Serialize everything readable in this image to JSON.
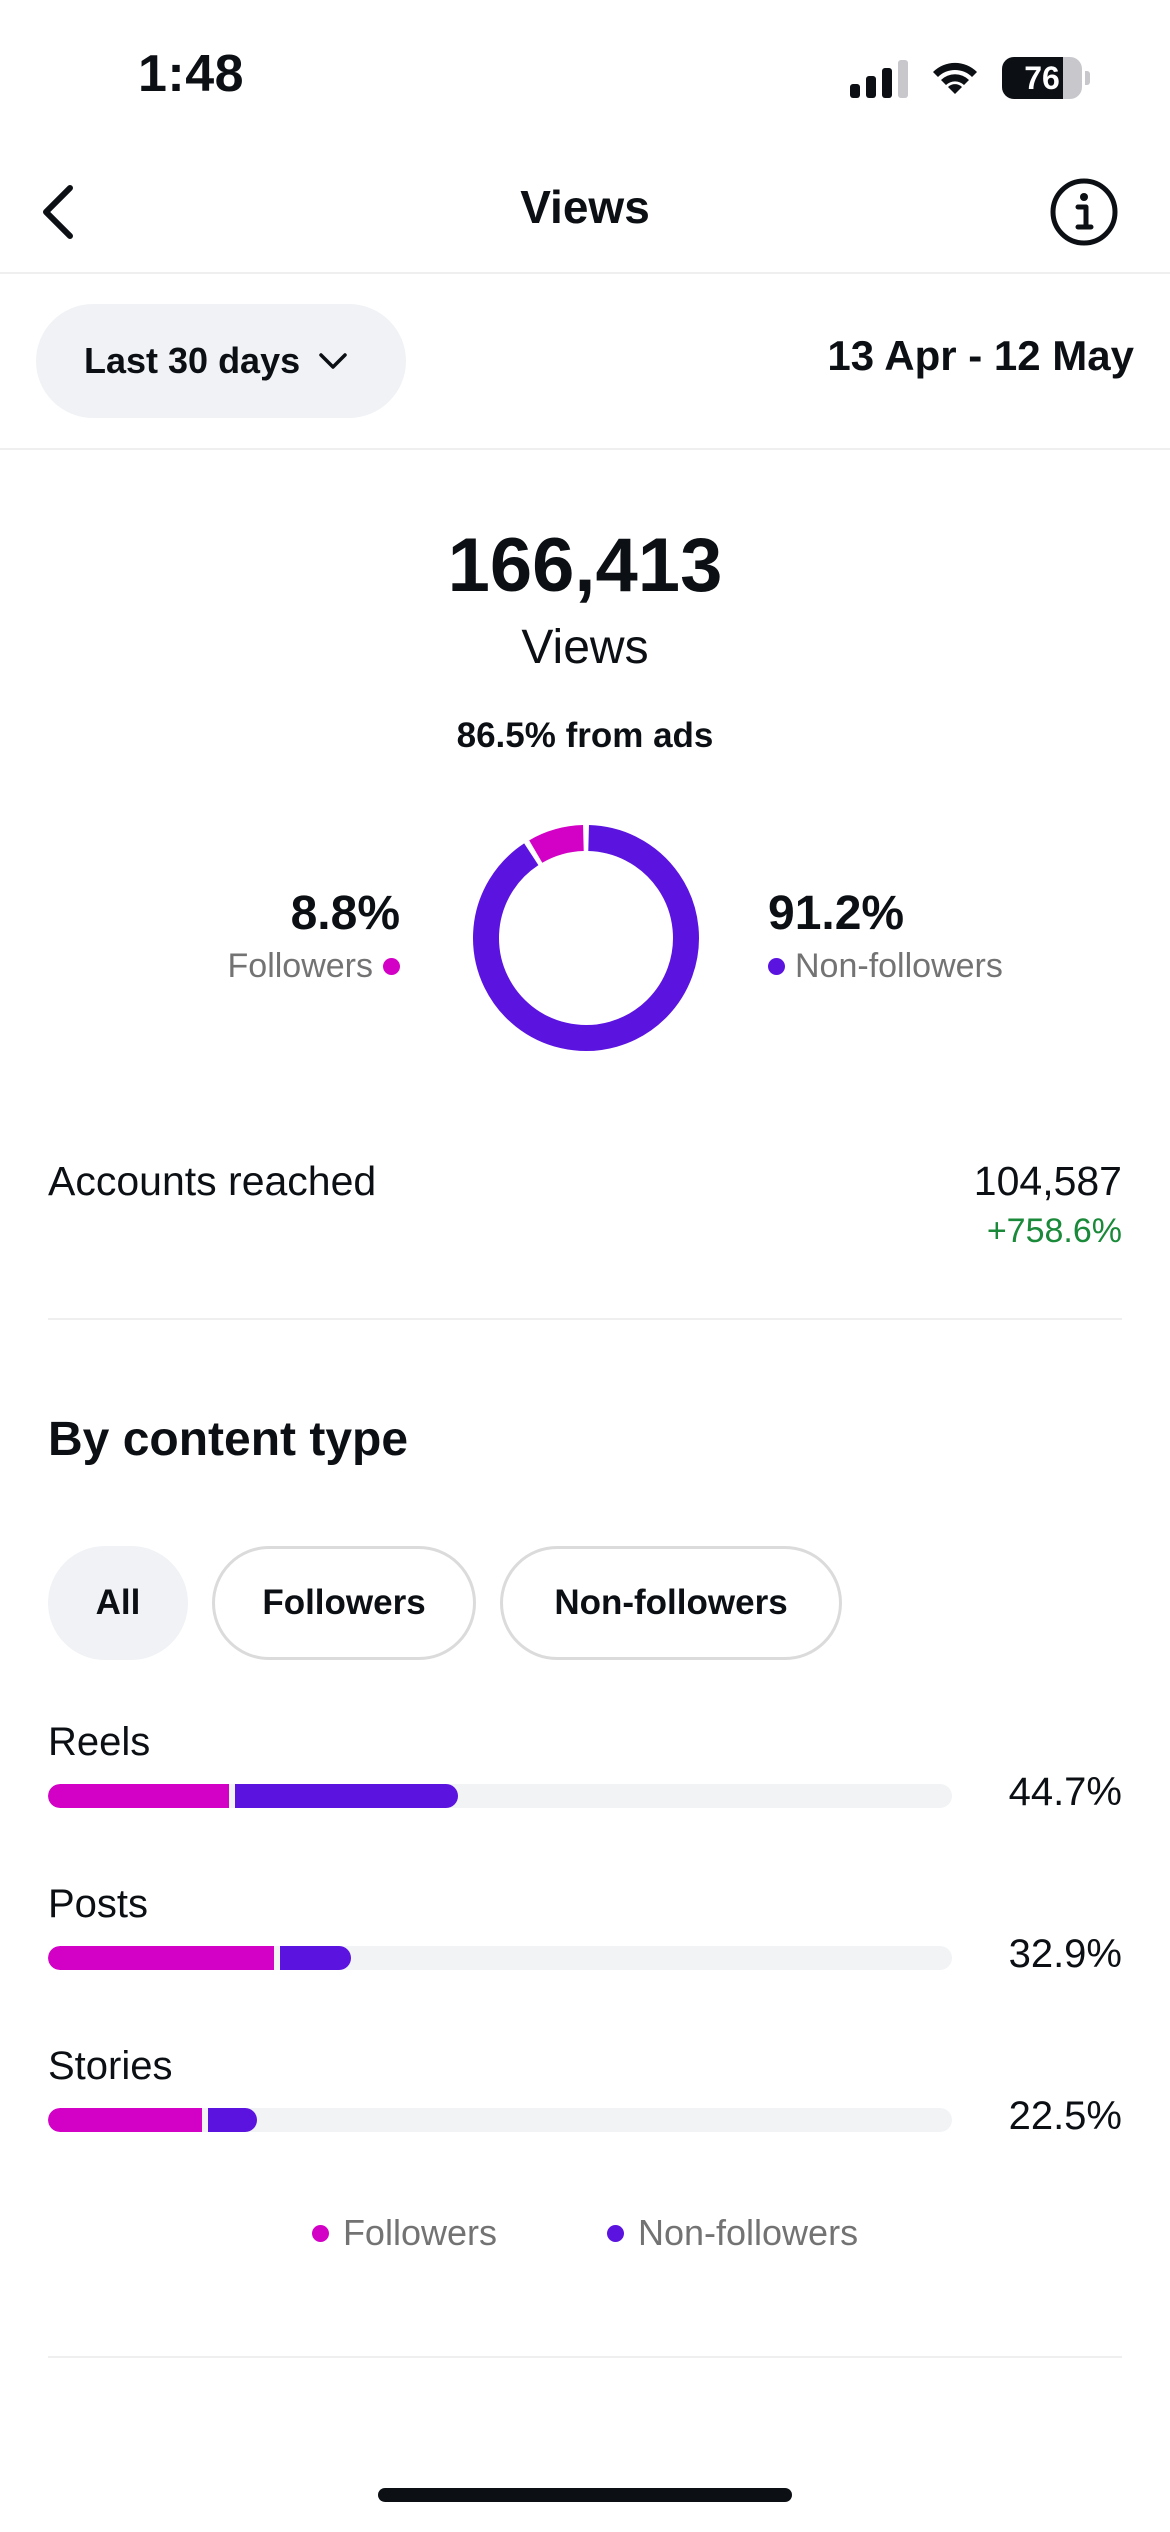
{
  "status_bar": {
    "time": "1:48",
    "battery": "76",
    "battery_level": 0.76
  },
  "header": {
    "title": "Views",
    "back_icon": "chevron-left-icon",
    "info_icon": "info-icon"
  },
  "filter": {
    "range_label": "Last 30 days",
    "date_range": "13 Apr - 12 May"
  },
  "summary": {
    "total": "166,413",
    "label": "Views",
    "ads_note": "86.5% from ads",
    "followers_pct": "8.8%",
    "followers_label": "Followers",
    "followers_share": 8.8,
    "non_followers_pct": "91.2%",
    "non_followers_label": "Non-followers",
    "non_followers_share": 91.2
  },
  "accounts_reached": {
    "label": "Accounts reached",
    "value": "104,587",
    "change": "+758.6%"
  },
  "content_type": {
    "title": "By content type",
    "chips": [
      {
        "label": "All",
        "active": true
      },
      {
        "label": "Followers",
        "active": false
      },
      {
        "label": "Non-followers",
        "active": false
      }
    ],
    "rows": [
      {
        "label": "Reels",
        "pct": "44.7%",
        "followers_fraction": 0.2,
        "non_followers_fraction": 0.247
      },
      {
        "label": "Posts",
        "pct": "32.9%",
        "followers_fraction": 0.25,
        "non_followers_fraction": 0.079
      },
      {
        "label": "Stories",
        "pct": "22.5%",
        "followers_fraction": 0.17,
        "non_followers_fraction": 0.055
      }
    ],
    "legend": {
      "followers": "Followers",
      "non_followers": "Non-followers"
    }
  },
  "colors": {
    "followers": "#d301c5",
    "non_followers": "#5b13e0",
    "positive": "#1a8a3a",
    "muted": "#737373"
  }
}
